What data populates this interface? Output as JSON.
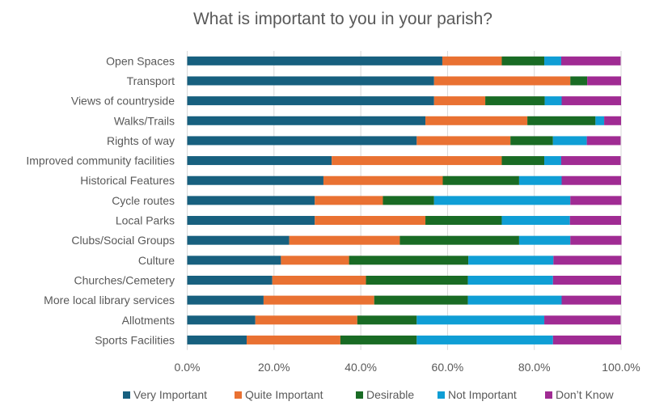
{
  "chart_data": {
    "type": "bar",
    "orientation": "horizontal",
    "stacked": "percent",
    "title": "What is important to you in your parish?",
    "xlabel": "",
    "ylabel": "",
    "xlim": [
      0,
      100
    ],
    "x_ticks": [
      "0.0%",
      "20.0%",
      "40.0%",
      "60.0%",
      "80.0%",
      "100.0%"
    ],
    "grid": true,
    "legend_position": "bottom",
    "categories": [
      "Open Spaces",
      "Transport",
      "Views of countryside",
      "Walks/Trails",
      "Rights of way",
      "Improved community facilities",
      "Historical Features",
      "Cycle routes",
      "Local Parks",
      "Clubs/Social Groups",
      "Culture",
      "Churches/Cemetery",
      "More local library services",
      "Allotments",
      "Sports Facilities"
    ],
    "series": [
      {
        "name": "Very Important",
        "color": "#17607f",
        "values": [
          58.8,
          56.9,
          56.9,
          54.9,
          52.9,
          33.3,
          31.4,
          29.4,
          29.4,
          23.5,
          21.6,
          19.6,
          17.6,
          15.7,
          13.7
        ]
      },
      {
        "name": "Quite Important",
        "color": "#e97132",
        "values": [
          13.7,
          31.4,
          11.8,
          23.5,
          21.6,
          39.2,
          27.5,
          15.7,
          25.5,
          25.5,
          15.7,
          21.6,
          25.5,
          23.5,
          21.6
        ]
      },
      {
        "name": "Desirable",
        "color": "#196b24",
        "values": [
          9.8,
          3.9,
          13.7,
          15.7,
          9.8,
          9.8,
          17.6,
          11.8,
          17.6,
          27.5,
          27.5,
          23.5,
          21.6,
          13.7,
          17.6
        ]
      },
      {
        "name": "Not Important",
        "color": "#0f9ed5",
        "values": [
          3.9,
          0,
          3.9,
          2.0,
          7.8,
          3.9,
          9.8,
          31.4,
          15.7,
          11.8,
          19.6,
          19.6,
          21.6,
          29.4,
          31.4
        ]
      },
      {
        "name": "Don’t Know",
        "color": "#a02b93",
        "values": [
          13.7,
          7.8,
          13.7,
          3.9,
          7.8,
          13.7,
          13.7,
          11.8,
          11.8,
          11.8,
          15.7,
          15.7,
          13.7,
          17.6,
          15.7
        ]
      }
    ]
  }
}
